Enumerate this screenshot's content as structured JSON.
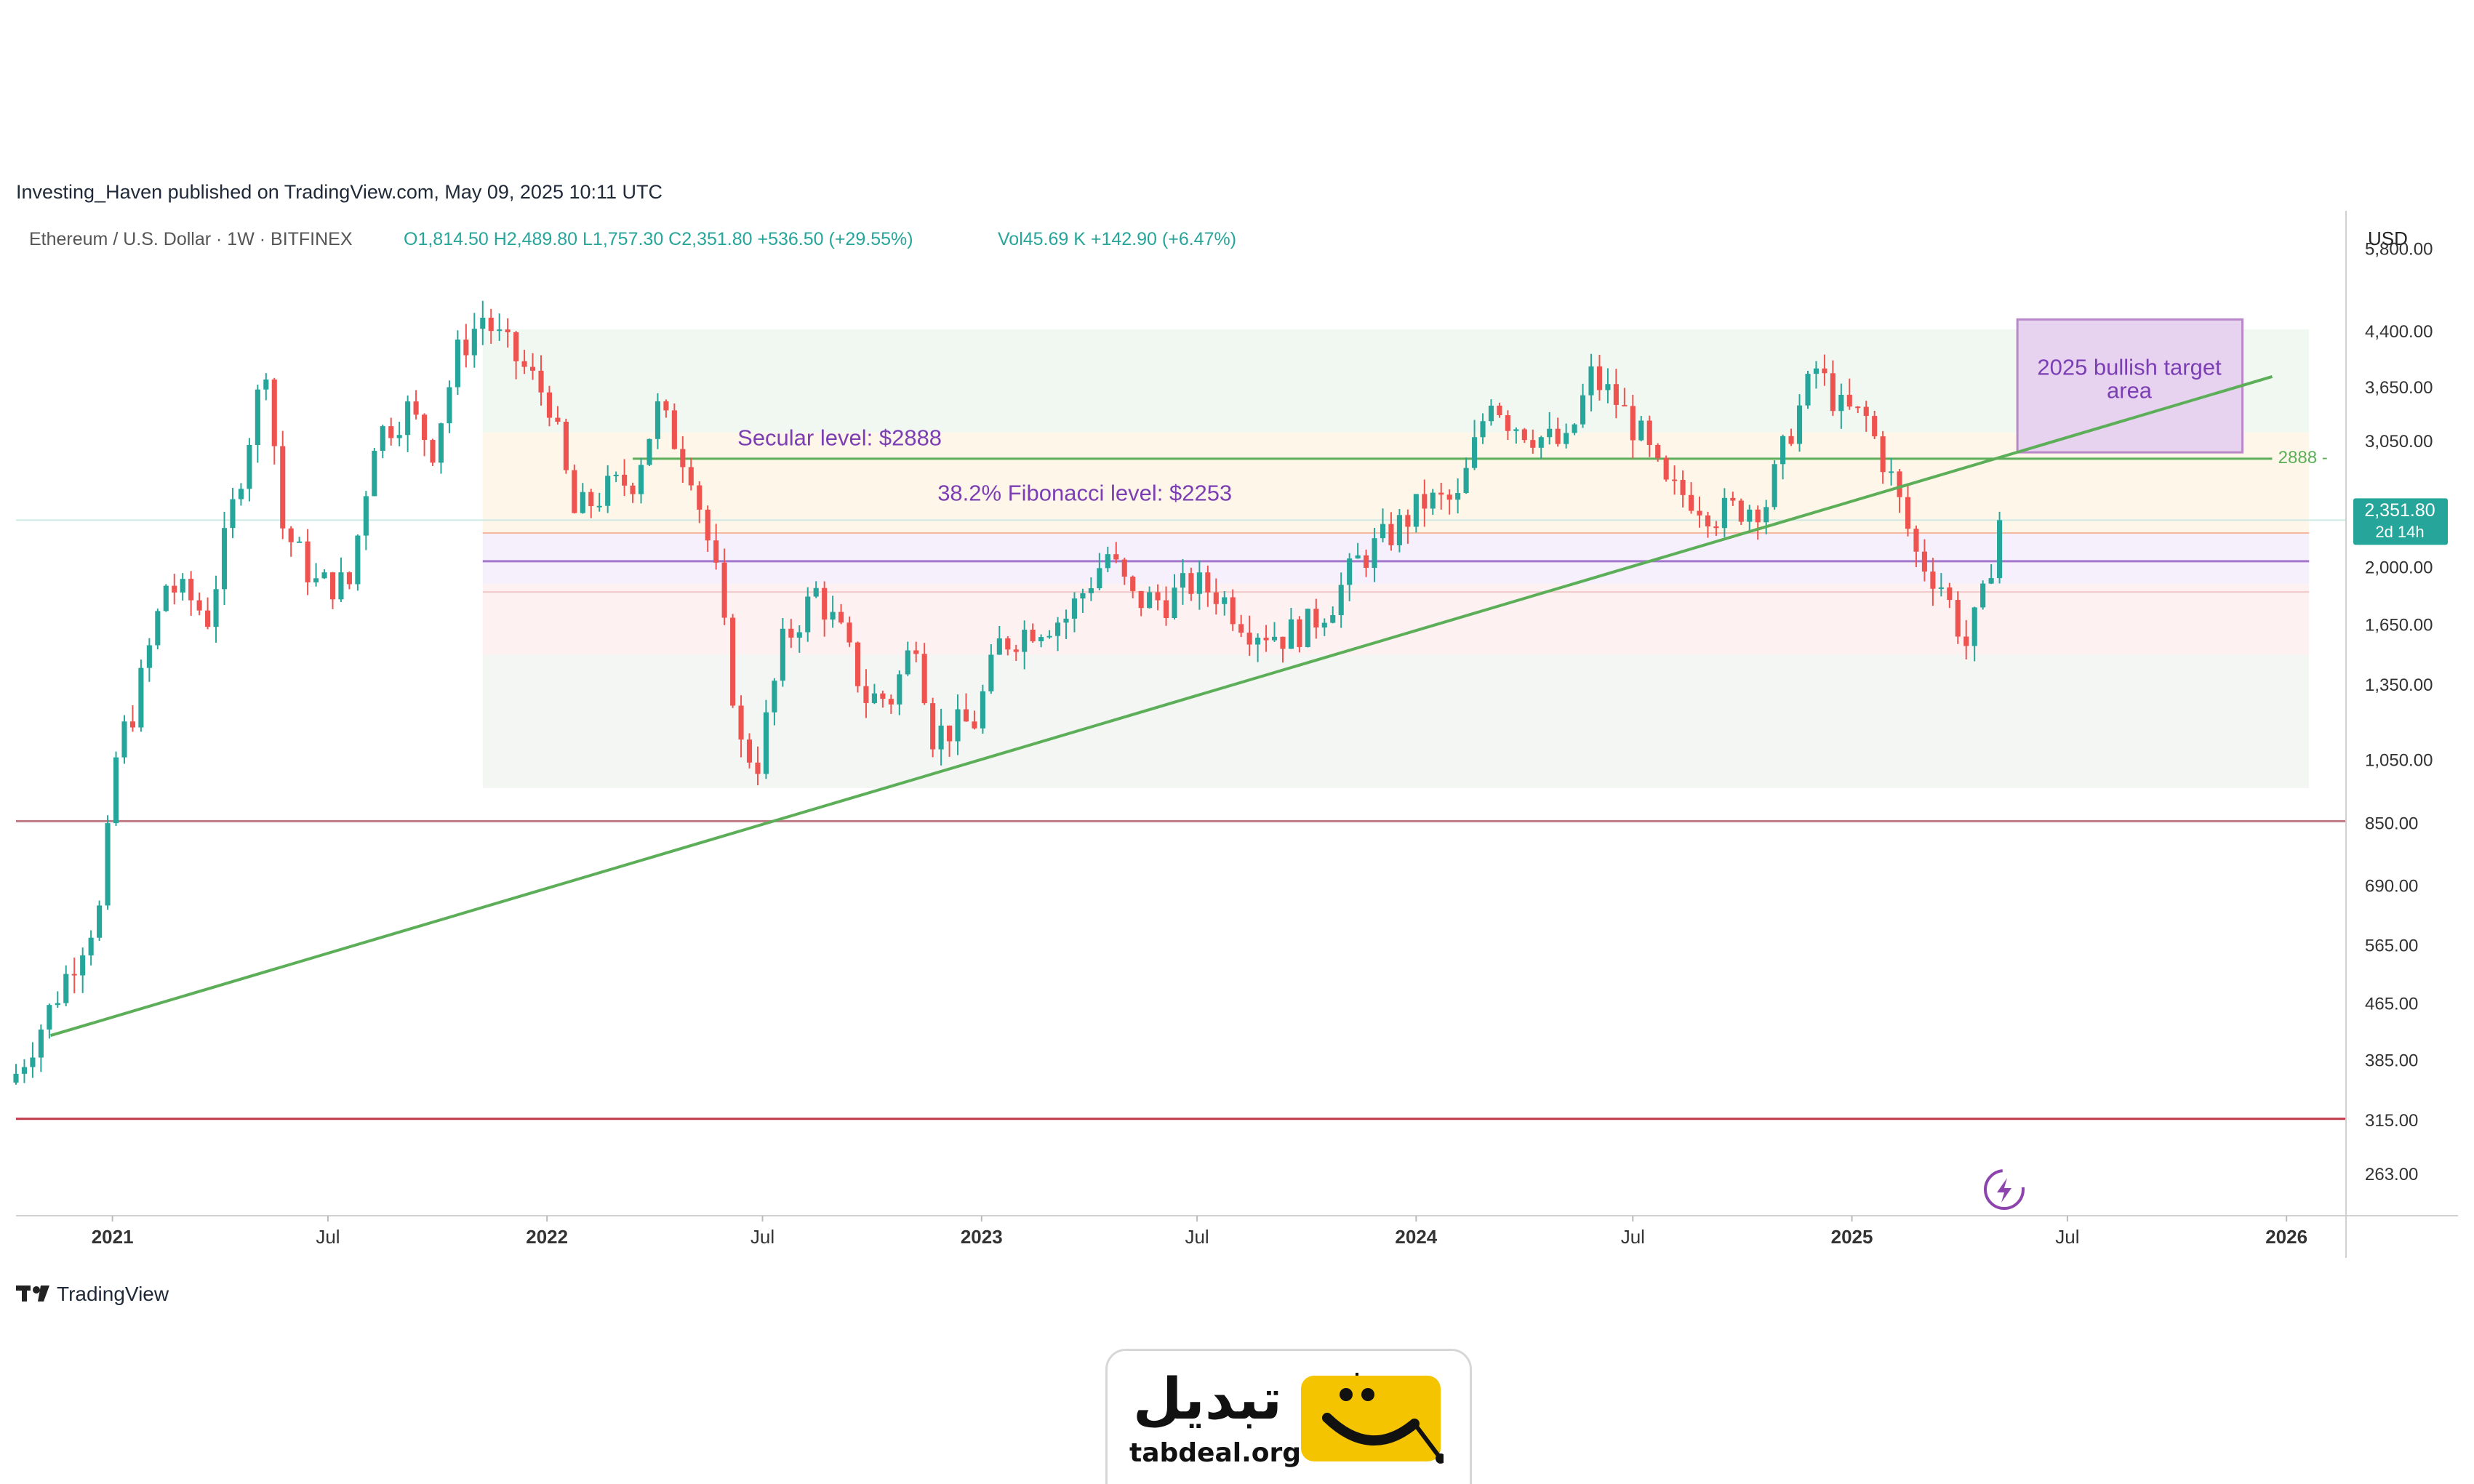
{
  "header": {
    "published": "Investing_Haven published on TradingView.com, May 09, 2025 10:11 UTC",
    "symbol": "Ethereum / U.S. Dollar · 1W · BITFINEX",
    "ohlc": "O1,814.50  H2,489.80  L1,757.30  C2,351.80  +536.50 (+29.55%)",
    "volume": "Vol45.69 K  +142.90 (+6.47%)",
    "currency": "USD"
  },
  "footer": {
    "brand": "TradingView"
  },
  "logo": {
    "name_fa": "تبدیل",
    "domain": "tabdeal.org"
  },
  "colors": {
    "up": "#26a69a",
    "down": "#ef5350",
    "trend": "#4caf50",
    "annotation": "#7b3fb3",
    "price_tag": "#26a69a"
  },
  "chart_data": {
    "type": "candlestick",
    "scale": "log",
    "ylim": [
      230,
      6000
    ],
    "x_range": [
      "2020-10-12",
      "2026-02-20"
    ],
    "y_ticks": [
      {
        "value": 5800,
        "label": "5,800.00"
      },
      {
        "value": 4400,
        "label": "4,400.00"
      },
      {
        "value": 3650,
        "label": "3,650.00"
      },
      {
        "value": 3050,
        "label": "3,050.00"
      },
      {
        "value": 2000,
        "label": "2,000.00"
      },
      {
        "value": 1650,
        "label": "1,650.00"
      },
      {
        "value": 1350,
        "label": "1,350.00"
      },
      {
        "value": 1050,
        "label": "1,050.00"
      },
      {
        "value": 850,
        "label": "850.00"
      },
      {
        "value": 690,
        "label": "690.00"
      },
      {
        "value": 565,
        "label": "565.00"
      },
      {
        "value": 465,
        "label": "465.00"
      },
      {
        "value": 385,
        "label": "385.00"
      },
      {
        "value": 315,
        "label": "315.00"
      },
      {
        "value": 263,
        "label": "263.00"
      }
    ],
    "x_ticks": [
      {
        "date": "2021-01-01",
        "label": "2021"
      },
      {
        "date": "2021-07-01",
        "label": "Jul"
      },
      {
        "date": "2022-01-01",
        "label": "2022"
      },
      {
        "date": "2022-07-01",
        "label": "Jul"
      },
      {
        "date": "2023-01-01",
        "label": "2023"
      },
      {
        "date": "2023-07-01",
        "label": "Jul"
      },
      {
        "date": "2024-01-01",
        "label": "2024"
      },
      {
        "date": "2024-07-01",
        "label": "Jul"
      },
      {
        "date": "2025-01-01",
        "label": "2025"
      },
      {
        "date": "2025-07-01",
        "label": "Jul"
      },
      {
        "date": "2026-01-01",
        "label": "2026"
      }
    ],
    "close_path": [
      [
        "2020-10-12",
        370
      ],
      [
        "2020-11-10",
        460
      ],
      [
        "2020-12-08",
        580
      ],
      [
        "2020-12-22",
        640
      ],
      [
        "2021-01-05",
        1100
      ],
      [
        "2021-01-19",
        1250
      ],
      [
        "2021-02-15",
        1900
      ],
      [
        "2021-03-08",
        1800
      ],
      [
        "2021-03-22",
        1700
      ],
      [
        "2021-04-12",
        2450
      ],
      [
        "2021-05-10",
        4000
      ],
      [
        "2021-05-24",
        2300
      ],
      [
        "2021-06-21",
        1900
      ],
      [
        "2021-07-19",
        1900
      ],
      [
        "2021-08-09",
        3100
      ],
      [
        "2021-09-06",
        3400
      ],
      [
        "2021-09-27",
        3000
      ],
      [
        "2021-10-18",
        4100
      ],
      [
        "2021-11-08",
        4650
      ],
      [
        "2021-11-22",
        4300
      ],
      [
        "2021-12-13",
        3900
      ],
      [
        "2022-01-03",
        3500
      ],
      [
        "2022-01-24",
        2400
      ],
      [
        "2022-02-21",
        2600
      ],
      [
        "2022-03-14",
        2700
      ],
      [
        "2022-04-04",
        3400
      ],
      [
        "2022-05-02",
        2800
      ],
      [
        "2022-05-23",
        1950
      ],
      [
        "2022-06-13",
        1100
      ],
      [
        "2022-06-27",
        1050
      ],
      [
        "2022-07-18",
        1550
      ],
      [
        "2022-08-15",
        1850
      ],
      [
        "2022-09-05",
        1600
      ],
      [
        "2022-09-26",
        1300
      ],
      [
        "2022-10-17",
        1300
      ],
      [
        "2022-11-07",
        1600
      ],
      [
        "2022-11-21",
        1150
      ],
      [
        "2022-12-26",
        1200
      ],
      [
        "2023-01-16",
        1550
      ],
      [
        "2023-02-13",
        1650
      ],
      [
        "2023-03-13",
        1700
      ],
      [
        "2023-04-17",
        2100
      ],
      [
        "2023-05-08",
        1800
      ],
      [
        "2023-06-05",
        1800
      ],
      [
        "2023-06-26",
        1900
      ],
      [
        "2023-07-17",
        1850
      ],
      [
        "2023-08-14",
        1650
      ],
      [
        "2023-09-11",
        1600
      ],
      [
        "2023-10-02",
        1650
      ],
      [
        "2023-10-23",
        1800
      ],
      [
        "2023-11-13",
        2050
      ],
      [
        "2023-12-11",
        2250
      ],
      [
        "2024-01-08",
        2500
      ],
      [
        "2024-02-05",
        2500
      ],
      [
        "2024-03-04",
        3600
      ],
      [
        "2024-03-18",
        3300
      ],
      [
        "2024-04-15",
        3100
      ],
      [
        "2024-05-06",
        3000
      ],
      [
        "2024-05-27",
        3800
      ],
      [
        "2024-06-17",
        3500
      ],
      [
        "2024-07-08",
        3100
      ],
      [
        "2024-07-29",
        2600
      ],
      [
        "2024-08-19",
        2550
      ],
      [
        "2024-09-09",
        2400
      ],
      [
        "2024-09-30",
        2450
      ],
      [
        "2024-10-21",
        2500
      ],
      [
        "2024-11-11",
        3200
      ],
      [
        "2024-12-02",
        3900
      ],
      [
        "2024-12-23",
        3400
      ],
      [
        "2025-01-13",
        3300
      ],
      [
        "2025-02-03",
        2700
      ],
      [
        "2025-02-24",
        2100
      ],
      [
        "2025-03-17",
        1900
      ],
      [
        "2025-04-07",
        1550
      ],
      [
        "2025-04-21",
        1800
      ],
      [
        "2025-05-05",
        2351.8
      ]
    ],
    "zones": [
      {
        "from": "2021-11-08",
        "to": "2026-01-20",
        "y1": 3150,
        "y2": 4450,
        "color": "#f1f8f1"
      },
      {
        "from": "2021-11-08",
        "to": "2026-01-20",
        "y1": 2253,
        "y2": 3150,
        "color": "#fff6ea"
      },
      {
        "from": "2021-11-08",
        "to": "2026-01-20",
        "y1": 1900,
        "y2": 2253,
        "color": "#f5f0fb"
      },
      {
        "from": "2021-11-08",
        "to": "2026-01-20",
        "y1": 1500,
        "y2": 1900,
        "color": "#fdf1f1"
      },
      {
        "from": "2021-11-08",
        "to": "2026-01-20",
        "y1": 960,
        "y2": 1500,
        "color": "#f4f6f4"
      }
    ],
    "horizontal_levels": [
      {
        "value": 2888,
        "from": "2022-03-14",
        "to": "2025-12-20",
        "color": "#5cae58",
        "width": 3
      },
      {
        "value": 2253,
        "from": "2021-11-08",
        "to": "2026-01-20",
        "color": "#f4b8a0",
        "width": 2
      },
      {
        "value": 2050,
        "from": "2021-11-08",
        "to": "2026-01-20",
        "color": "#a378cc",
        "width": 3
      },
      {
        "value": 1850,
        "from": "2021-11-08",
        "to": "2026-01-20",
        "color": "#f0c8c8",
        "width": 2
      },
      {
        "value": 860,
        "from": "2020-10-01",
        "to": "2026-02-20",
        "color": "#c07a86",
        "width": 3
      },
      {
        "value": 318,
        "from": "2020-10-01",
        "to": "2026-02-20",
        "color": "#c0394b",
        "width": 3
      },
      {
        "value": 2351.8,
        "from": "2020-10-01",
        "to": "2026-02-20",
        "color": "#cde9e4",
        "width": 2
      }
    ],
    "trendline": {
      "from": [
        "2020-11-10",
        420
      ],
      "to": [
        "2025-12-20",
        3800
      ],
      "color": "#5cae58"
    },
    "target_box": {
      "from": "2025-05-20",
      "to": "2025-11-25",
      "y1": 2950,
      "y2": 4600,
      "fill": "#e7d3ef",
      "stroke": "#b888c8"
    },
    "annotations": [
      {
        "id": "secular",
        "text": "Secular level: $2888",
        "date": "2022-06-10",
        "value": 3080
      },
      {
        "id": "fib",
        "text": "38.2% Fibonacci level: $2253",
        "date": "2022-11-25",
        "value": 2560
      },
      {
        "id": "target",
        "text": "2025 bullish target",
        "text2": "area",
        "date": "2025-08-22",
        "value": 3900
      },
      {
        "id": "level-tag",
        "text": "2888 -",
        "date": "2025-12-25",
        "value": 2888
      }
    ],
    "last_price": {
      "label": "2,351.80",
      "countdown": "2d 14h",
      "value": 2351.8
    }
  }
}
